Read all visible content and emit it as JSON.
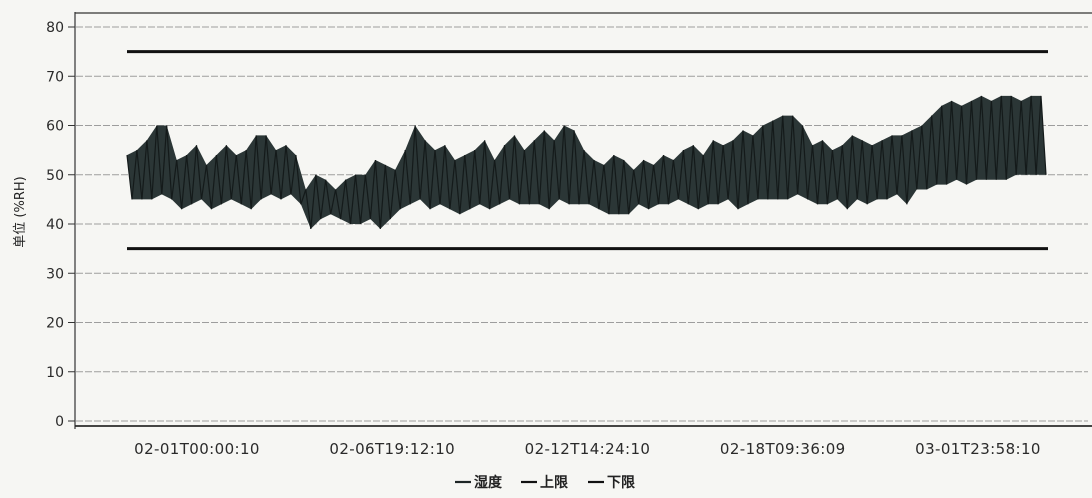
{
  "chart_data": {
    "type": "line",
    "ylabel": "单位 (%RH)",
    "ylim": [
      0,
      80
    ],
    "yticks": [
      0,
      10,
      20,
      30,
      40,
      50,
      60,
      70,
      80
    ],
    "xticks": [
      "02-01T00:00:10",
      "02-06T19:12:10",
      "02-12T14:24:10",
      "02-18T09:36:09",
      "03-01T23:58:10"
    ],
    "grid": true,
    "legend": "bottom-center",
    "series": [
      {
        "name": "湿度",
        "color": "#2b3636",
        "values": [
          54,
          45,
          55,
          45,
          57,
          45,
          60,
          46,
          60,
          45,
          53,
          43,
          54,
          44,
          56,
          45,
          52,
          43,
          54,
          44,
          56,
          45,
          54,
          44,
          55,
          43,
          58,
          45,
          58,
          46,
          55,
          45,
          56,
          46,
          54,
          44,
          47,
          39,
          50,
          41,
          49,
          42,
          47,
          41,
          49,
          40,
          50,
          40,
          50,
          41,
          53,
          39,
          52,
          41,
          51,
          43,
          55,
          44,
          60,
          45,
          57,
          43,
          55,
          44,
          56,
          43,
          53,
          42,
          54,
          43,
          55,
          44,
          57,
          43,
          53,
          44,
          56,
          45,
          58,
          44,
          55,
          44,
          57,
          44,
          59,
          43,
          57,
          45,
          60,
          44,
          59,
          44,
          55,
          44,
          53,
          43,
          52,
          42,
          54,
          42,
          53,
          42,
          51,
          44,
          53,
          43,
          52,
          44,
          54,
          44,
          53,
          45,
          55,
          44,
          56,
          43,
          54,
          44,
          57,
          44,
          56,
          45,
          57,
          43,
          59,
          44,
          58,
          45,
          60,
          45,
          61,
          45,
          62,
          45,
          62,
          46,
          60,
          45,
          56,
          44,
          57,
          44,
          55,
          45,
          56,
          43,
          58,
          45,
          57,
          44,
          56,
          45,
          57,
          45,
          58,
          46,
          58,
          44,
          59,
          47,
          60,
          47,
          62,
          48,
          64,
          48,
          65,
          49,
          64,
          48,
          65,
          49,
          66,
          49,
          65,
          49,
          66,
          49,
          66,
          50,
          65,
          50,
          66,
          50,
          66,
          50
        ]
      },
      {
        "name": "上限",
        "color": "#111111",
        "value": 75
      },
      {
        "name": "下限",
        "color": "#111111",
        "value": 35
      }
    ]
  }
}
